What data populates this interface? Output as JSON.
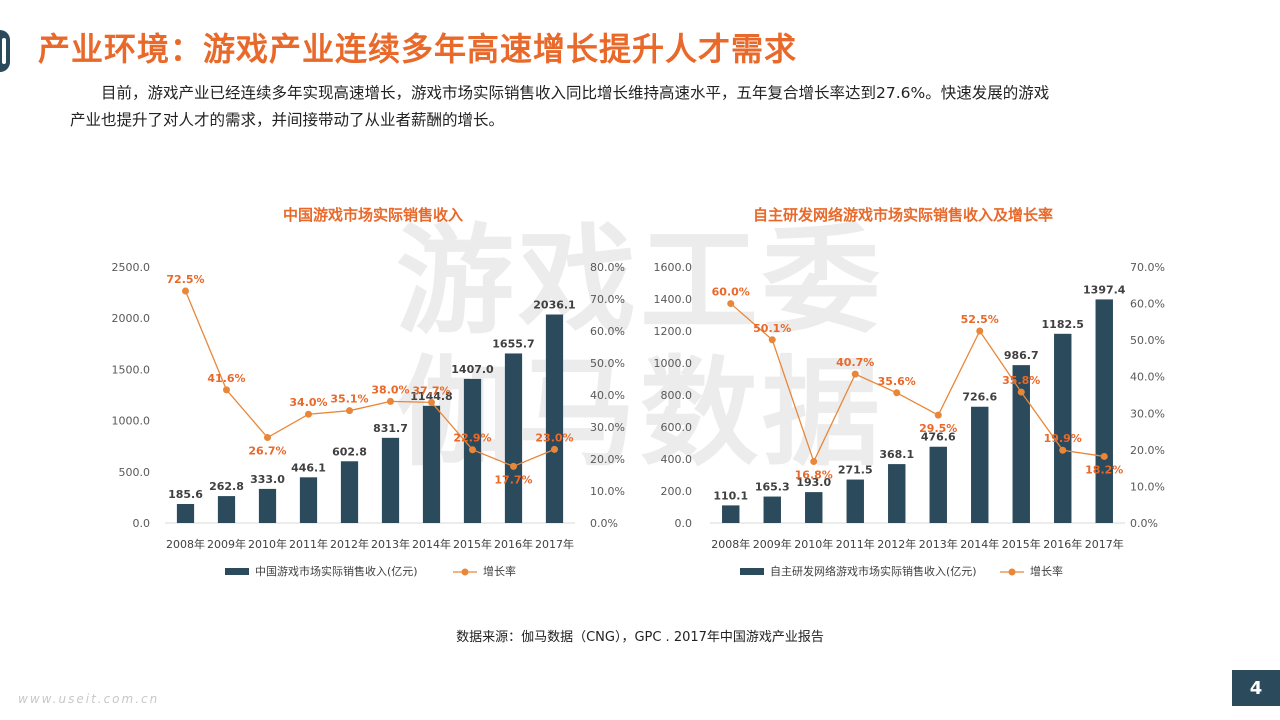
{
  "header": {
    "title": "产业环境：游戏产业连续多年高速增长提升人才需求",
    "intro_line1": "目前，游戏产业已经连续多年实现高速增长，游戏市场实际销售收入同比增长维持高速水平，五年复合增长率达到27.6%。快速发展的游戏",
    "intro_line2": "产业也提升了对人才的需求，并间接带动了从业者薪酬的增长。"
  },
  "watermark": {
    "line1": "游戏工委",
    "line2": "伽马数据"
  },
  "footer": {
    "source": "数据来源：伽马数据（CNG），GPC . 2017年中国游戏产业报告",
    "site": "www.useit.com.cn",
    "page": "4"
  },
  "colors": {
    "bar": "#2b4a5c",
    "line": "#e8873a",
    "title": "#e8692a",
    "label": "#e8692a"
  },
  "chart_data": [
    {
      "type": "bar+line",
      "title": "中国游戏市场实际销售收入",
      "categories": [
        "2008年",
        "2009年",
        "2010年",
        "2011年",
        "2012年",
        "2013年",
        "2014年",
        "2015年",
        "2016年",
        "2017年"
      ],
      "series": [
        {
          "name": "中国游戏市场实际销售收入(亿元)",
          "kind": "bar",
          "axis": "left",
          "values": [
            185.6,
            262.8,
            333.0,
            446.1,
            602.8,
            831.7,
            1144.8,
            1407.0,
            1655.7,
            2036.1
          ],
          "labels": [
            "185.6",
            "262.8",
            "333.0",
            "446.1",
            "602.8",
            "831.7",
            "1144.8",
            "1407.0",
            "1655.7",
            "2036.1"
          ]
        },
        {
          "name": "增长率",
          "kind": "line",
          "axis": "right",
          "values": [
            72.5,
            41.6,
            26.7,
            34.0,
            35.1,
            38.0,
            37.7,
            22.9,
            17.7,
            23.0
          ],
          "labels": [
            "72.5%",
            "41.6%",
            "26.7%",
            "34.0%",
            "35.1%",
            "38.0%",
            "37.7%",
            "22.9%",
            "17.7%",
            "23.0%"
          ]
        }
      ],
      "ylim": [
        0,
        2500
      ],
      "y_ticks": [
        "0.0",
        "500.0",
        "1000.0",
        "1500.0",
        "2000.0",
        "2500.0"
      ],
      "y2lim": [
        0,
        80
      ],
      "y2_ticks": [
        "0.0%",
        "10.0%",
        "20.0%",
        "30.0%",
        "40.0%",
        "50.0%",
        "60.0%",
        "70.0%",
        "80.0%"
      ],
      "legend_position": "bottom"
    },
    {
      "type": "bar+line",
      "title": "自主研发网络游戏市场实际销售收入及增长率",
      "categories": [
        "2008年",
        "2009年",
        "2010年",
        "2011年",
        "2012年",
        "2013年",
        "2014年",
        "2015年",
        "2016年",
        "2017年"
      ],
      "series": [
        {
          "name": "自主研发网络游戏市场实际销售收入(亿元)",
          "kind": "bar",
          "axis": "left",
          "values": [
            110.1,
            165.3,
            193.0,
            271.5,
            368.1,
            476.6,
            726.6,
            986.7,
            1182.5,
            1397.4
          ],
          "labels": [
            "110.1",
            "165.3",
            "193.0",
            "271.5",
            "368.1",
            "476.6",
            "726.6",
            "986.7",
            "1182.5",
            "1397.4"
          ]
        },
        {
          "name": "增长率",
          "kind": "line",
          "axis": "right",
          "values": [
            60.0,
            50.1,
            16.8,
            40.7,
            35.6,
            29.5,
            52.5,
            35.8,
            19.9,
            18.2
          ],
          "labels": [
            "60.0%",
            "50.1%",
            "16.8%",
            "40.7%",
            "35.6%",
            "29.5%",
            "52.5%",
            "35.8%",
            "19.9%",
            "18.2%"
          ]
        }
      ],
      "ylim": [
        0,
        1600
      ],
      "y_ticks": [
        "0.0",
        "200.0",
        "400.0",
        "600.0",
        "800.0",
        "1000.0",
        "1200.0",
        "1400.0",
        "1600.0"
      ],
      "y2lim": [
        0,
        70
      ],
      "y2_ticks": [
        "0.0%",
        "10.0%",
        "20.0%",
        "30.0%",
        "40.0%",
        "50.0%",
        "60.0%",
        "70.0%"
      ],
      "legend_position": "bottom"
    }
  ]
}
